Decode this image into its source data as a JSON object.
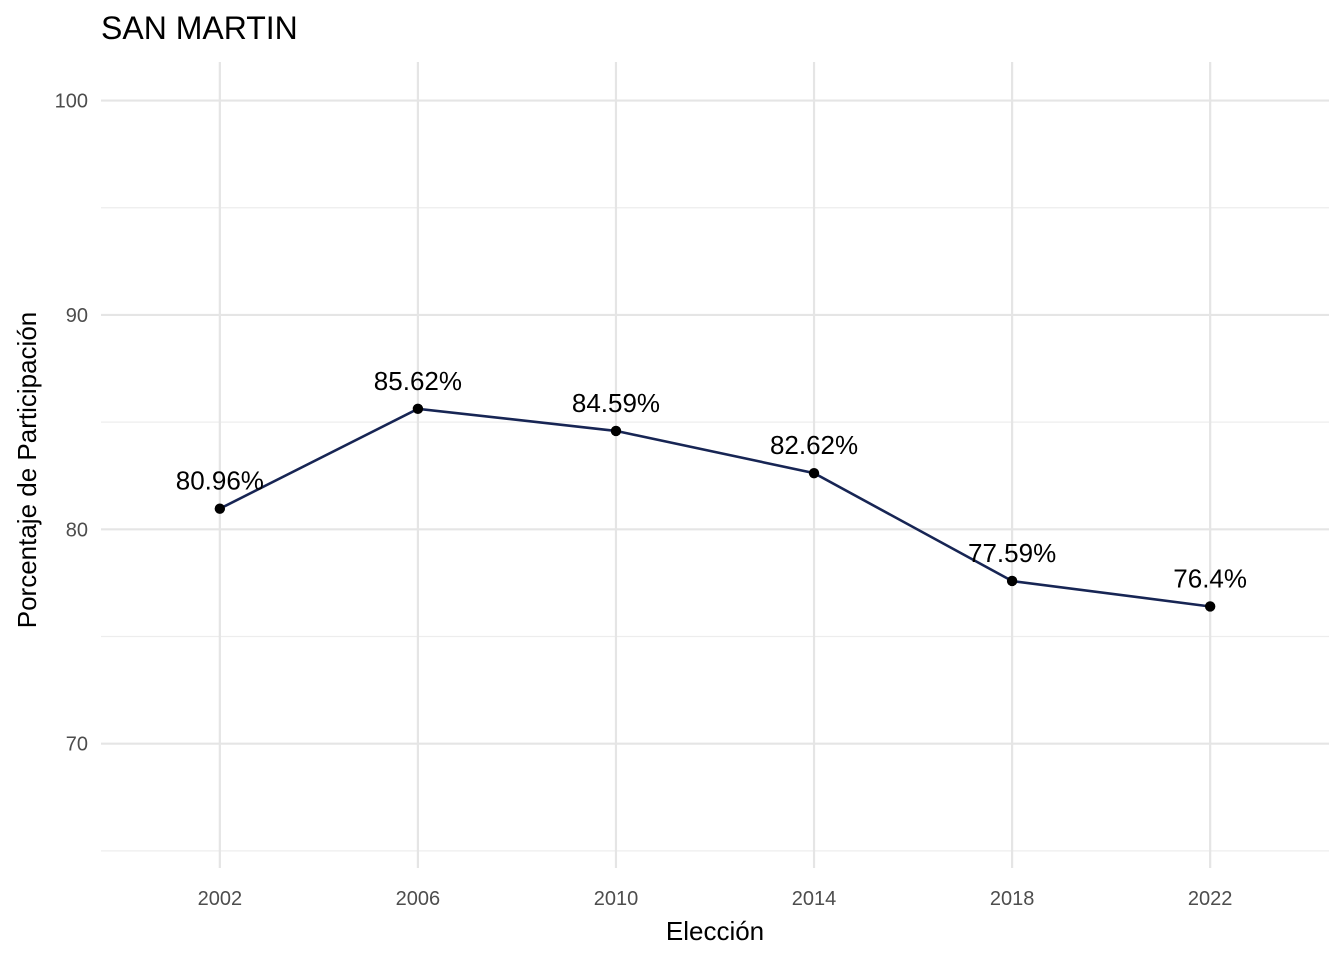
{
  "chart_data": {
    "type": "line",
    "title": "SAN MARTIN",
    "xlabel": "Elección",
    "ylabel": "Porcentaje de Participación",
    "x": [
      2002,
      2006,
      2010,
      2014,
      2018,
      2022
    ],
    "values": [
      80.96,
      85.62,
      84.59,
      82.62,
      77.59,
      76.4
    ],
    "data_labels": [
      "80.96%",
      "85.62%",
      "84.59%",
      "82.62%",
      "77.59%",
      "76.4%"
    ],
    "x_ticks": [
      "2002",
      "2006",
      "2010",
      "2014",
      "2018",
      "2022"
    ],
    "y_ticks": [
      "70",
      "80",
      "90",
      "100"
    ],
    "xlim": [
      1999.6,
      2024.4
    ],
    "ylim": [
      64.2,
      101.8
    ],
    "grid": true,
    "legend": "none",
    "colors": {
      "line": "#172554",
      "point": "#000000"
    }
  }
}
